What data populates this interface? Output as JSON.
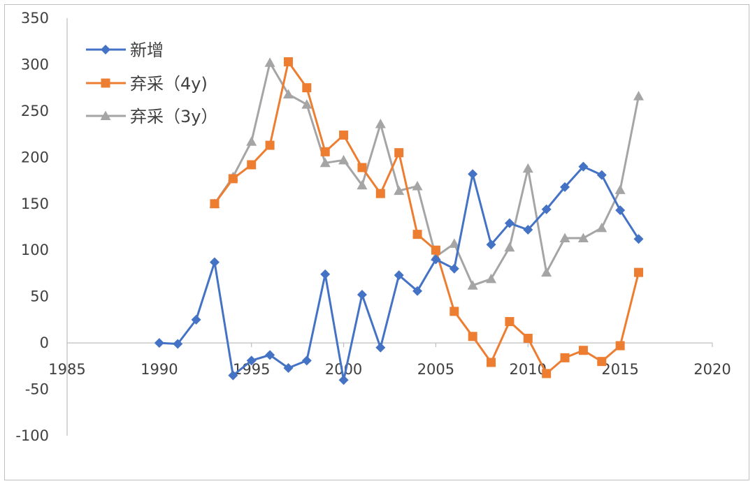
{
  "chart_data": {
    "type": "line",
    "title": "",
    "xlabel": "",
    "ylabel": "",
    "xlim": [
      1985,
      2020
    ],
    "ylim": [
      -100,
      350
    ],
    "x_ticks": [
      1985,
      1990,
      1995,
      2000,
      2005,
      2010,
      2015,
      2020
    ],
    "x_tick_labels": [
      "1985",
      "1990",
      "1995",
      "2000",
      "2005",
      "2010",
      "2015",
      "2020"
    ],
    "y_ticks": [
      -100,
      -50,
      0,
      50,
      100,
      150,
      200,
      250,
      300,
      350
    ],
    "y_tick_labels": [
      "-100",
      "-50",
      "0",
      "50",
      "100",
      "150",
      "200",
      "250",
      "300",
      "350"
    ],
    "legend_position": "top-left",
    "series": [
      {
        "name": "新增",
        "color": "#4472C4",
        "marker": "diamond",
        "x": [
          1990,
          1991,
          1992,
          1993,
          1994,
          1995,
          1996,
          1997,
          1998,
          1999,
          2000,
          2001,
          2002,
          2003,
          2004,
          2005,
          2006,
          2007,
          2008,
          2009,
          2010,
          2011,
          2012,
          2013,
          2014,
          2015,
          2016
        ],
        "values": [
          0,
          -1,
          25,
          87,
          -35,
          -19,
          -13,
          -27,
          -19,
          74,
          -40,
          52,
          -5,
          73,
          56,
          90,
          80,
          182,
          106,
          129,
          122,
          144,
          168,
          190,
          181,
          143,
          112
        ]
      },
      {
        "name": "弃采（4y)",
        "color": "#ED7D31",
        "marker": "square",
        "x": [
          1993,
          1994,
          1995,
          1996,
          1997,
          1998,
          1999,
          2000,
          2001,
          2002,
          2003,
          2004,
          2005,
          2006,
          2007,
          2008,
          2009,
          2010,
          2011,
          2012,
          2013,
          2014,
          2015,
          2016
        ],
        "values": [
          150,
          177,
          192,
          213,
          303,
          275,
          206,
          224,
          189,
          161,
          205,
          117,
          100,
          34,
          7,
          -21,
          23,
          5,
          -33,
          -16,
          -8,
          -20,
          -3,
          76
        ]
      },
      {
        "name": "弃采（3y）",
        "color": "#A5A5A5",
        "marker": "triangle",
        "x": [
          1993,
          1994,
          1995,
          1996,
          1997,
          1998,
          1999,
          2000,
          2001,
          2002,
          2003,
          2004,
          2005,
          2006,
          2007,
          2008,
          2009,
          2010,
          2011,
          2012,
          2013,
          2014,
          2015,
          2016
        ],
        "values": [
          150,
          179,
          217,
          302,
          268,
          257,
          194,
          197,
          170,
          236,
          164,
          169,
          93,
          107,
          62,
          69,
          103,
          188,
          76,
          113,
          113,
          124,
          165,
          266
        ]
      }
    ]
  }
}
